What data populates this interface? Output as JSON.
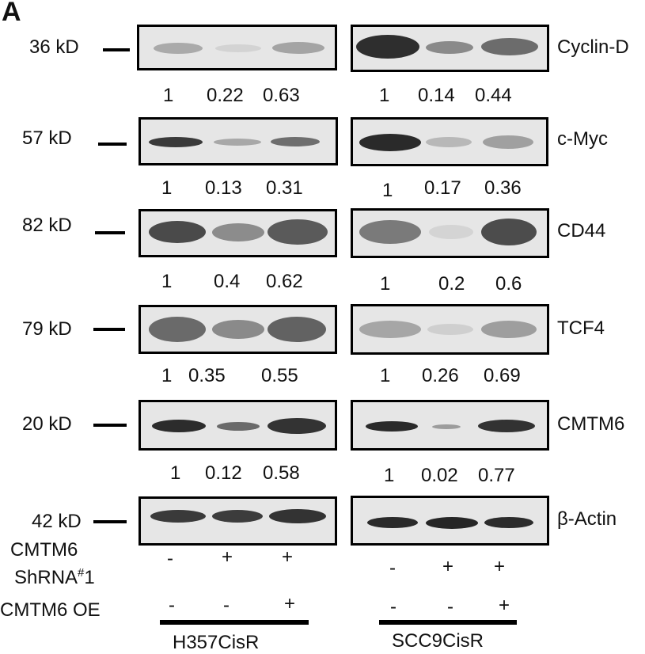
{
  "panel_label": "A",
  "rows": [
    {
      "mw": "36 kD",
      "target": "Cyclin-D",
      "left_ratios": [
        "1",
        "0.22",
        "0.63"
      ],
      "right_ratios": [
        "1",
        "0.14",
        "0.44"
      ]
    },
    {
      "mw": "57 kD",
      "target": "c-Myc",
      "left_ratios": [
        "1",
        "0.13",
        "0.31"
      ],
      "right_ratios": [
        "1",
        "0.17",
        "0.36"
      ]
    },
    {
      "mw": "82 kD",
      "target": "CD44",
      "left_ratios": [
        "1",
        "0.4",
        "0.62"
      ],
      "right_ratios": [
        "1",
        "0.2",
        "0.6"
      ]
    },
    {
      "mw": "79 kD",
      "target": "TCF4",
      "left_ratios": [
        "1",
        "0.35",
        "0.55"
      ],
      "right_ratios": [
        "1",
        "0.26",
        "0.69"
      ]
    },
    {
      "mw": "20 kD",
      "target": "CMTM6",
      "left_ratios": [
        "1",
        "0.12",
        "0.58"
      ],
      "right_ratios": [
        "1",
        "0.02",
        "0.77"
      ]
    },
    {
      "mw": "42 kD",
      "target": "β-Actin"
    }
  ],
  "conditions": {
    "shrna_label_line1": "CMTM6",
    "shrna_label_line2": "ShRNA",
    "shrna_label_sup": "#",
    "shrna_label_num": "1",
    "oe_label": "CMTM6 OE",
    "shrna_signs": [
      "-",
      "+",
      "+"
    ],
    "oe_signs": [
      "-",
      "-",
      "+"
    ]
  },
  "cell_lines": [
    "H357CisR",
    "SCC9CisR"
  ]
}
